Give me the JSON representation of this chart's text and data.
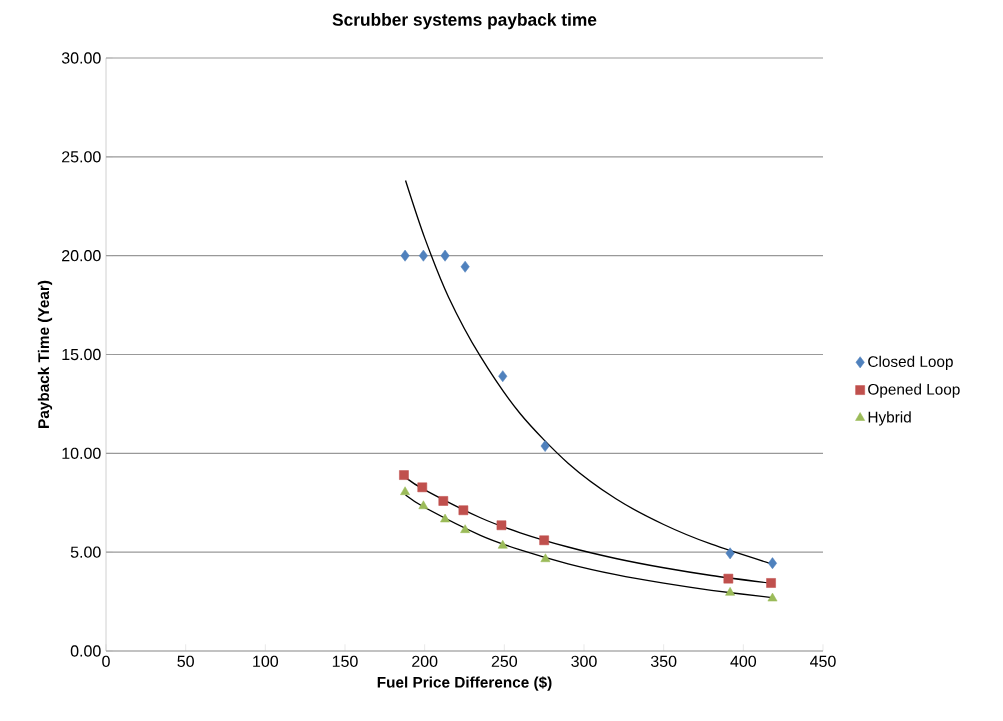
{
  "chart_data": {
    "type": "scatter",
    "title": "Scrubber systems payback time",
    "xlabel": "Fuel Price Difference ($)",
    "ylabel": "Payback Time (Year)",
    "series": [
      {
        "name": "Closed Loop",
        "color": "#4f81bd",
        "marker": "diamond",
        "x": [
          187.7,
          199.2,
          212.8,
          225.4,
          249,
          275.6,
          391.7,
          418.3
        ],
        "values": [
          20,
          20,
          20,
          19.44,
          13.9,
          10.37,
          4.94,
          4.44
        ]
      },
      {
        "name": "Opened Loop",
        "color": "#c0504d",
        "marker": "square",
        "x": [
          187,
          198.5,
          211.7,
          224.3,
          248.2,
          275,
          390.6,
          417.4
        ],
        "values": [
          8.9,
          8.28,
          7.59,
          7.12,
          6.36,
          5.6,
          3.66,
          3.44
        ]
      },
      {
        "name": "Hybrid",
        "color": "#9bbb59",
        "marker": "triangle",
        "x": [
          187.7,
          199.2,
          212.8,
          225.4,
          249,
          275.8,
          391.7,
          418.3
        ],
        "values": [
          8.04,
          7.33,
          6.66,
          6.12,
          5.33,
          4.65,
          2.95,
          2.66
        ]
      },
      {
        "type": "line",
        "color": "#000000",
        "marker": "none",
        "x": [
          188,
          200,
          215,
          235,
          260,
          290,
          320,
          350,
          380,
          418
        ],
        "values": [
          23.8,
          20.9,
          17.9,
          14.9,
          12.0,
          9.5,
          7.7,
          6.4,
          5.4,
          4.4
        ]
      },
      {
        "type": "line",
        "color": "#000000",
        "marker": "none",
        "x": [
          188,
          200,
          235,
          260,
          290,
          320,
          350,
          380,
          418
        ],
        "values": [
          8.77,
          8.15,
          6.74,
          5.98,
          5.26,
          4.68,
          4.21,
          3.82,
          3.42
        ]
      },
      {
        "type": "line",
        "color": "#000000",
        "marker": "none",
        "x": [
          188,
          200,
          235,
          260,
          290,
          320,
          350,
          380,
          418
        ],
        "values": [
          7.89,
          7.26,
          5.85,
          5.11,
          4.41,
          3.86,
          3.43,
          3.07,
          2.7
        ]
      }
    ],
    "xlim": [
      0,
      450
    ],
    "xticks": [
      0,
      50,
      100,
      150,
      200,
      250,
      300,
      350,
      400,
      450
    ],
    "ylim": [
      0,
      30
    ],
    "yticks": [
      {
        "value": 0,
        "label": "0.00"
      },
      {
        "value": 5,
        "label": "5.00"
      },
      {
        "value": 10,
        "label": "10.00"
      },
      {
        "value": 15,
        "label": "15.00"
      },
      {
        "value": 20,
        "label": "20.00"
      },
      {
        "value": 25,
        "label": "25.00"
      },
      {
        "value": 30,
        "label": "30.00"
      }
    ],
    "grid": "y",
    "legend": "right"
  }
}
